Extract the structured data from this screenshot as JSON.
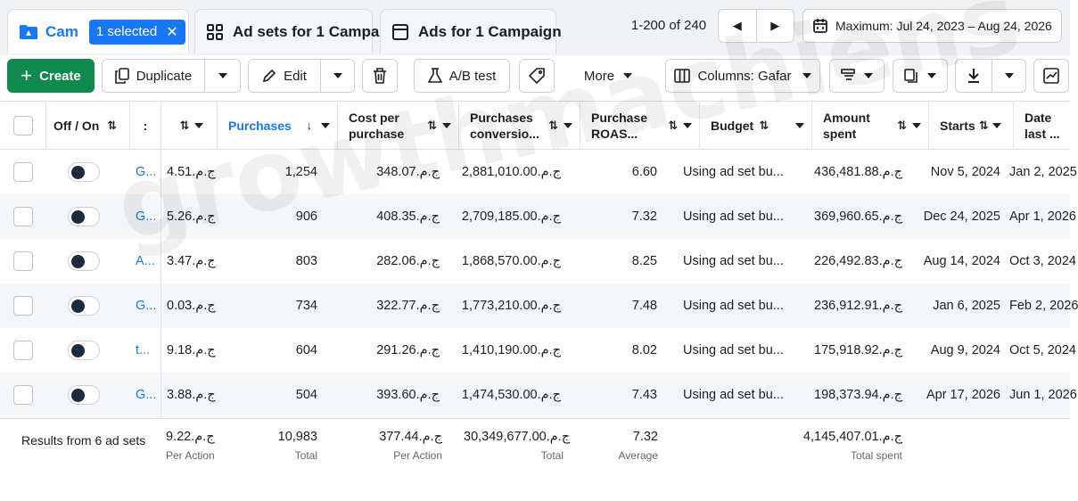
{
  "tabs": {
    "campaign_label": "Cam",
    "selected_badge": "1 selected",
    "adsets_label": "Ad sets for 1 Campa",
    "ads_label": "Ads for 1 Campaign"
  },
  "pagination": {
    "range": "1-200 of 240"
  },
  "date_range": "Maximum: Jul 24, 2023 – Aug 24, 2026",
  "toolbar": {
    "create": "Create",
    "duplicate": "Duplicate",
    "edit": "Edit",
    "ab_test": "A/B test",
    "more": "More",
    "columns": "Columns: Gafar"
  },
  "columns": {
    "off_on": "Off / On",
    "cpr_prefix": ":",
    "purchases": "Purchases",
    "cost_per_purchase": "Cost per purchase",
    "purchases_conversion": "Purchases conversio...",
    "purchase_roas": "Purchase ROAS...",
    "budget": "Budget",
    "amount_spent": "Amount spent",
    "starts": "Starts",
    "date_last": "Date last ..."
  },
  "rows": [
    {
      "name": "G...",
      "cpa": "4.51.ج.م",
      "purchases": "1,254",
      "cost": "348.07.ج.م",
      "conv": "2,881,010.00.ج.م",
      "roas": "6.60",
      "budget": "Using ad set bu...",
      "spent": "436,481.88.ج.م",
      "starts": "Nov 5, 2024",
      "last": "Jan 2, 2025"
    },
    {
      "name": "G...",
      "cpa": "5.26.ج.م",
      "purchases": "906",
      "cost": "408.35.ج.م",
      "conv": "2,709,185.00.ج.م",
      "roas": "7.32",
      "budget": "Using ad set bu...",
      "spent": "369,960.65.ج.م",
      "starts": "Dec 24, 2025",
      "last": "Apr 1, 2026"
    },
    {
      "name": "A...",
      "cpa": "3.47.ج.م",
      "purchases": "803",
      "cost": "282.06.ج.م",
      "conv": "1,868,570.00.ج.م",
      "roas": "8.25",
      "budget": "Using ad set bu...",
      "spent": "226,492.83.ج.م",
      "starts": "Aug 14, 2024",
      "last": "Oct 3, 2024"
    },
    {
      "name": "G...",
      "cpa": "0.03.ج.م",
      "purchases": "734",
      "cost": "322.77.ج.م",
      "conv": "1,773,210.00.ج.م",
      "roas": "7.48",
      "budget": "Using ad set bu...",
      "spent": "236,912.91.ج.م",
      "starts": "Jan 6, 2025",
      "last": "Feb 2, 2026"
    },
    {
      "name": "t...",
      "cpa": "9.18.ج.م",
      "purchases": "604",
      "cost": "291.26.ج.م",
      "conv": "1,410,190.00.ج.م",
      "roas": "8.02",
      "budget": "Using ad set bu...",
      "spent": "175,918.92.ج.م",
      "starts": "Aug 9, 2024",
      "last": "Oct 5, 2024"
    },
    {
      "name": "G...",
      "cpa": "3.88.ج.م",
      "purchases": "504",
      "cost": "393.60.ج.م",
      "conv": "1,474,530.00.ج.م",
      "roas": "7.43",
      "budget": "Using ad set bu...",
      "spent": "198,373.94.ج.م",
      "starts": "Apr 17, 2026",
      "last": "Jun 1, 2026"
    }
  ],
  "footer": {
    "results_label": "Results from 6 ad sets",
    "cpa": "9.22.ج.م",
    "cpa_sub": "Per Action",
    "purchases": "10,983",
    "purchases_sub": "Total",
    "cost": "377.44.ج.م",
    "cost_sub": "Per Action",
    "conv": "30,349,677.00.ج.م",
    "conv_sub": "Total",
    "roas": "7.32",
    "roas_sub": "Average",
    "spent": "4,145,407.01.ج.م",
    "spent_sub": "Total spent"
  },
  "watermark": "growthmachiens",
  "colors": {
    "accent": "#1877f2",
    "create_green": "#0f8a4c"
  }
}
